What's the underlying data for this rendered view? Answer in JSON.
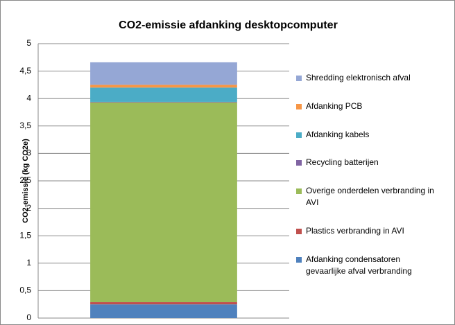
{
  "chart_data": {
    "type": "stacked_bar",
    "title": "CO2-emissie afdanking desktopcomputer",
    "y_label": "CO2-emissie (kg CO2e)",
    "categories": [
      null
    ],
    "series": [
      {
        "name": "Afdanking condensatoren gevaarlijke afval verbranding",
        "color": "#4f81bd",
        "values": [
          0.25
        ]
      },
      {
        "name": "Plastics verbranding in AVI",
        "color": "#c0504d",
        "values": [
          0.04
        ]
      },
      {
        "name": "Overige onderdelen verbranding in AVI",
        "color": "#9bbb59",
        "values": [
          3.64
        ]
      },
      {
        "name": "Recycling batterijen",
        "color": "#8064a2",
        "values": [
          0.01
        ]
      },
      {
        "name": "Afdanking kabels",
        "color": "#4bacc6",
        "values": [
          0.26
        ]
      },
      {
        "name": "Afdanking PCB",
        "color": "#f79646",
        "values": [
          0.05
        ]
      },
      {
        "name": "Shredding elektronisch afval",
        "color": "#95a7d5",
        "values": [
          0.41
        ]
      }
    ],
    "ylim": [
      0,
      5
    ],
    "yticks": [
      0,
      {
        "value": 0.5,
        "label": "0,5"
      },
      1,
      {
        "value": 1.5,
        "label": "1,5"
      },
      2,
      {
        "value": 2.5,
        "label": "2,5"
      },
      3,
      {
        "value": 3.5,
        "label": "3,5"
      },
      4,
      {
        "value": 4.5,
        "label": "4,5"
      },
      5
    ],
    "grid": true,
    "legend": "right"
  }
}
